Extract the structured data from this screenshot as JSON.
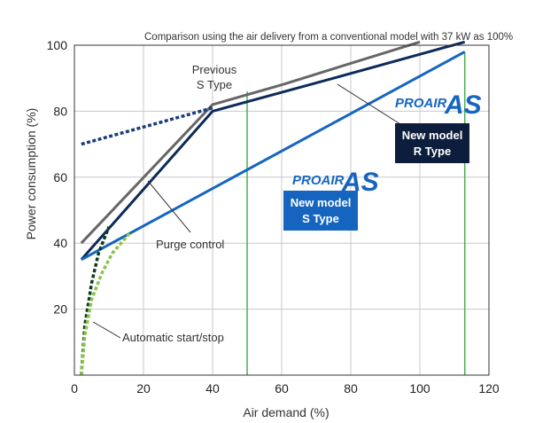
{
  "chart_data": {
    "type": "line",
    "title": "",
    "subtitle": "Comparison using the air delivery from a conventional model with 37 kW as 100%",
    "xlabel": "Air demand (%)",
    "ylabel": "Power consumption (%)",
    "xlim": [
      0,
      120
    ],
    "ylim": [
      0,
      100
    ],
    "x_ticks": [
      "0",
      "20",
      "40",
      "60",
      "80",
      "100",
      "120"
    ],
    "y_ticks": [
      "20",
      "40",
      "60",
      "80",
      "100"
    ],
    "grid": true,
    "series": [
      {
        "name": "",
        "style": "solid",
        "color": "#666666",
        "x": [
          2,
          40,
          60,
          100
        ],
        "y": [
          40,
          82,
          88,
          101
        ]
      },
      {
        "name": "",
        "style": "solid",
        "color": "#0c2a5a",
        "x": [
          2,
          40,
          75,
          113
        ],
        "y": [
          35,
          80,
          90,
          101
        ]
      },
      {
        "name": "",
        "style": "solid",
        "color": "#1565c0",
        "x": [
          2,
          113
        ],
        "y": [
          35,
          98
        ]
      },
      {
        "name": "",
        "style": "dotted",
        "color": "#1a3d7c",
        "x": [
          2,
          40
        ],
        "y": [
          70,
          81
        ]
      },
      {
        "name": "",
        "style": "dotted",
        "color": "#0d3b1a",
        "x": [
          2,
          3,
          5,
          7,
          10
        ],
        "y": [
          0,
          15,
          28,
          37,
          45
        ]
      },
      {
        "name": "",
        "style": "dotted",
        "color": "#8bc34a",
        "x": [
          2,
          3,
          5,
          8,
          11,
          16
        ],
        "y": [
          0,
          12,
          23,
          31,
          37,
          43
        ]
      }
    ],
    "vertical_lines": [
      {
        "x": 50,
        "y_from": 0,
        "y_to": 86,
        "color": "#4caf50"
      },
      {
        "x": 113,
        "y_from": 0,
        "y_to": 98,
        "color": "#4caf50"
      }
    ],
    "annotations": {
      "previous_line1": "Previous",
      "previous_line2": "S Type",
      "purge_control": "Purge control",
      "auto_start_stop": "Automatic start/stop",
      "logo_text": "PROAIR",
      "logo_mark": "AS",
      "r_type_line1": "New model",
      "r_type_line2": "R Type",
      "s_type_line1": "New model",
      "s_type_line2": "S Type"
    },
    "colors": {
      "logo_blue": "#1565c0",
      "badge_navy": "#0c1e3c",
      "badge_blue": "#1565c0"
    }
  }
}
